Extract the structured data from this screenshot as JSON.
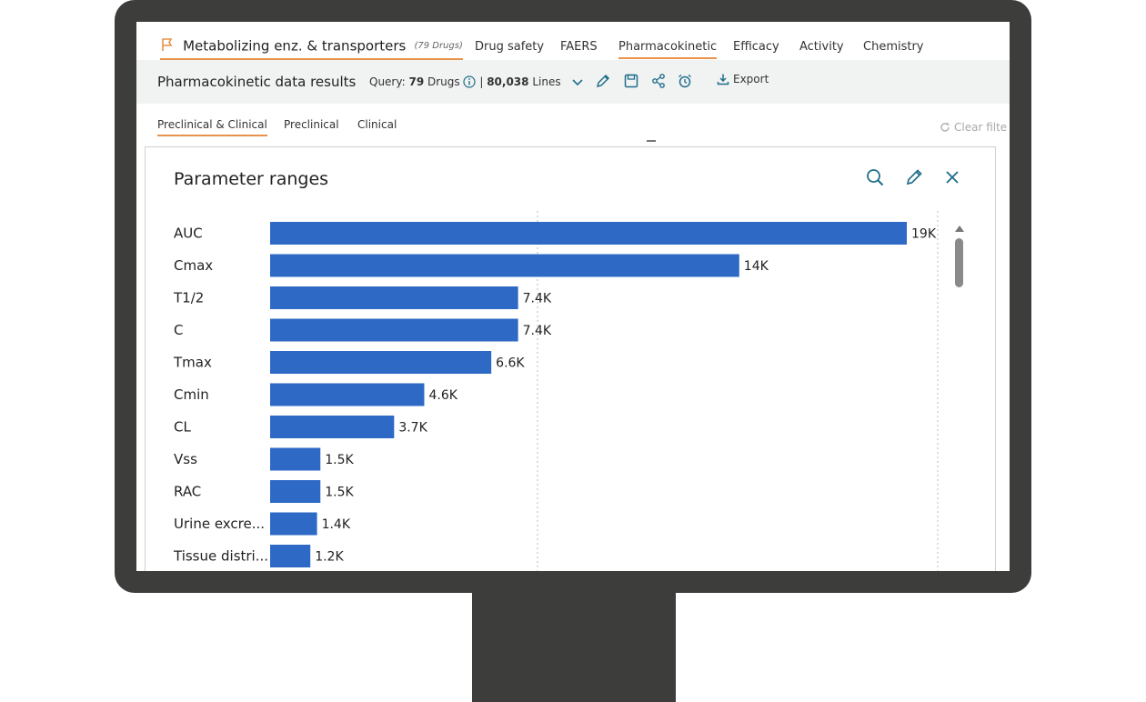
{
  "nav": {
    "main_tab": "Metabolizing enz. & transporters",
    "main_tab_count": "(79 Drugs)",
    "tabs": [
      "Drug safety",
      "FAERS",
      "Pharmacokinetic",
      "Efficacy",
      "Activity",
      "Chemistry"
    ],
    "active_tab": "Pharmacokinetic"
  },
  "toolbar": {
    "title": "Pharmacokinetic data results",
    "query_label": "Query:",
    "query_count": "79",
    "query_unit": "Drugs",
    "lines_count": "80,038",
    "lines_label": "Lines",
    "export_label": "Export",
    "icons": [
      "pencil-icon",
      "save-icon",
      "share-icon",
      "alarm-icon"
    ]
  },
  "subtabs": {
    "items": [
      "Preclinical & Clinical",
      "Preclinical",
      "Clinical"
    ],
    "active": "Preclinical & Clinical",
    "clear_filters": "Clear filte"
  },
  "card": {
    "title": "Parameter ranges",
    "icons": [
      "search-icon",
      "edit-icon",
      "close-icon"
    ]
  },
  "colors": {
    "bar": "#2e69c6",
    "accent": "#e8924a",
    "icon": "#1f6f8b",
    "monitor": "#3d3d3c"
  },
  "chart_data": {
    "type": "bar",
    "orientation": "horizontal",
    "categories": [
      "AUC",
      "Cmax",
      "T1/2",
      "C",
      "Tmax",
      "Cmin",
      "CL",
      "Vss",
      "RAC",
      "Urine excre...",
      "Tissue distri..."
    ],
    "values": [
      19000,
      14000,
      7400,
      7400,
      6600,
      4600,
      3700,
      1500,
      1500,
      1400,
      1200
    ],
    "value_labels": [
      "19K",
      "14K",
      "7.4K",
      "7.4K",
      "6.6K",
      "4.6K",
      "3.7K",
      "1.5K",
      "1.5K",
      "1.4K",
      "1.2K"
    ],
    "xlim": [
      0,
      19000
    ],
    "grid": true
  }
}
